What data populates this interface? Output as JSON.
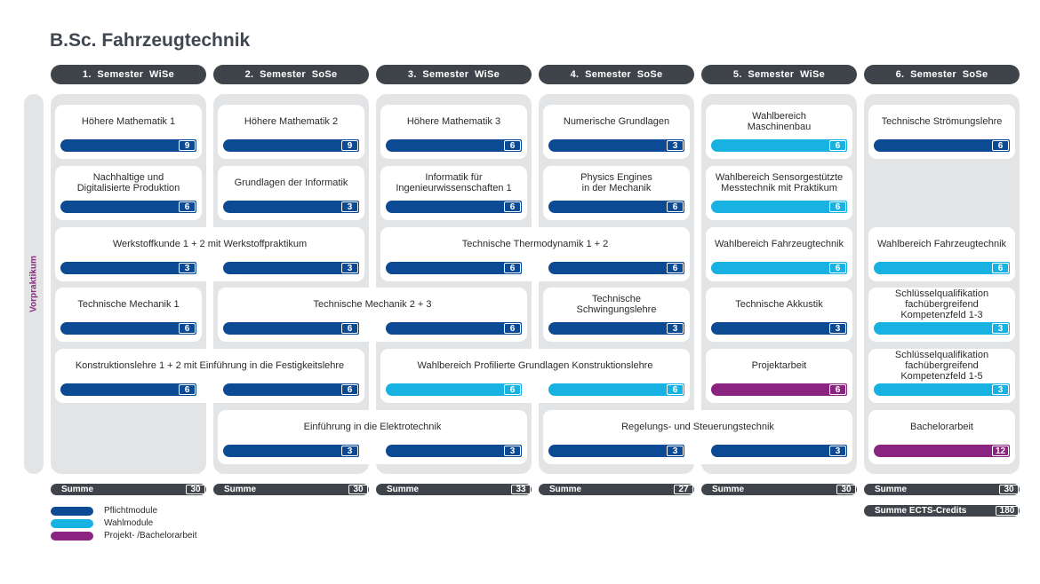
{
  "title": "B.Sc. Fahrzeugtechnik",
  "vorpraktikum": "Vorpraktikum",
  "colors": {
    "pflicht": "#0d4a94",
    "wahl": "#17b2e2",
    "projekt": "#8b2480",
    "dark": "#3f444b",
    "column_bg": "#e3e4e6"
  },
  "semesters": [
    {
      "label": "1.  Semester  WiSe",
      "sum": "30"
    },
    {
      "label": "2.  Semester  SoSe",
      "sum": "30"
    },
    {
      "label": "3.  Semester  WiSe",
      "sum": "33"
    },
    {
      "label": "4.  Semester  SoSe",
      "sum": "27"
    },
    {
      "label": "5.  Semester  WiSe",
      "sum": "30"
    },
    {
      "label": "6.  Semester  SoSe",
      "sum": "30"
    }
  ],
  "summe_label": "Summe",
  "total": {
    "label": "Summe ECTS-Credits",
    "value": "180"
  },
  "modules": [
    {
      "label": "Höhere Mathematik 1",
      "type": "pflicht",
      "credits": [
        "9"
      ]
    },
    {
      "label": "Höhere Mathematik 2",
      "type": "pflicht",
      "credits": [
        "9"
      ]
    },
    {
      "label": "Höhere Mathematik 3",
      "type": "pflicht",
      "credits": [
        "6"
      ]
    },
    {
      "label": "Numerische Grundlagen",
      "type": "pflicht",
      "credits": [
        "3"
      ]
    },
    {
      "label": "Wahlbereich\nMaschinenbau",
      "type": "wahl",
      "credits": [
        "6"
      ]
    },
    {
      "label": "Technische Strömungslehre",
      "type": "pflicht",
      "credits": [
        "6"
      ]
    },
    {
      "label": "Nachhaltige und\nDigitalisierte Produktion",
      "type": "pflicht",
      "credits": [
        "6"
      ]
    },
    {
      "label": "Grundlagen der Informatik",
      "type": "pflicht",
      "credits": [
        "3"
      ]
    },
    {
      "label": "Informatik für\nIngenieurwissenschaften 1",
      "type": "pflicht",
      "credits": [
        "6"
      ]
    },
    {
      "label": "Physics Engines\nin der Mechanik",
      "type": "pflicht",
      "credits": [
        "6"
      ]
    },
    {
      "label": "Wahlbereich Sensorgestützte\nMesstechnik mit Praktikum",
      "type": "wahl",
      "credits": [
        "6"
      ]
    },
    {
      "label": "Werkstoffkunde 1 + 2 mit Werkstoffpraktikum",
      "type": "pflicht",
      "credits": [
        "3",
        "3"
      ]
    },
    {
      "label": "Technische Thermodynamik 1 + 2",
      "type": "pflicht",
      "credits": [
        "6",
        "6"
      ]
    },
    {
      "label": "Wahlbereich Fahrzeugtechnik",
      "type": "wahl",
      "credits": [
        "6"
      ]
    },
    {
      "label": "Wahlbereich Fahrzeugtechnik",
      "type": "wahl",
      "credits": [
        "6"
      ]
    },
    {
      "label": "Technische Mechanik 1",
      "type": "pflicht",
      "credits": [
        "6"
      ]
    },
    {
      "label": "Technische Mechanik 2 + 3",
      "type": "pflicht",
      "credits": [
        "6",
        "6"
      ]
    },
    {
      "label": "Technische\nSchwingungslehre",
      "type": "pflicht",
      "credits": [
        "3"
      ]
    },
    {
      "label": "Technische Akkustik",
      "type": "pflicht",
      "credits": [
        "3"
      ]
    },
    {
      "label": "Schlüsselqualifikation\nfachübergreifend\nKompetenzfeld 1-3",
      "type": "wahl",
      "credits": [
        "3"
      ]
    },
    {
      "label": "Konstruktionslehre 1 + 2 mit Einführung in die Festigkeitslehre",
      "type": "pflicht",
      "credits": [
        "6",
        "6"
      ]
    },
    {
      "label": "Wahlbereich Profilierte Grundlagen Konstruktionslehre",
      "type": "wahl",
      "credits": [
        "6",
        "6"
      ]
    },
    {
      "label": "Projektarbeit",
      "type": "projekt",
      "credits": [
        "6"
      ]
    },
    {
      "label": "Schlüsselqualifikation\nfachübergreifend\nKompetenzfeld 1-5",
      "type": "wahl",
      "credits": [
        "3"
      ]
    },
    {
      "label": "Einführung in die Elektrotechnik",
      "type": "pflicht",
      "credits": [
        "3",
        "3"
      ]
    },
    {
      "label": "Regelungs-  und Steuerungstechnik",
      "type": "pflicht",
      "credits": [
        "3",
        "3"
      ]
    },
    {
      "label": "Bachelorarbeit",
      "type": "projekt",
      "credits": [
        "12"
      ]
    }
  ],
  "legend": [
    {
      "label": "Pflichtmodule",
      "type": "pflicht"
    },
    {
      "label": "Wahlmodule",
      "type": "wahl"
    },
    {
      "label": "Projekt- /Bachelorarbeit",
      "type": "projekt"
    }
  ]
}
